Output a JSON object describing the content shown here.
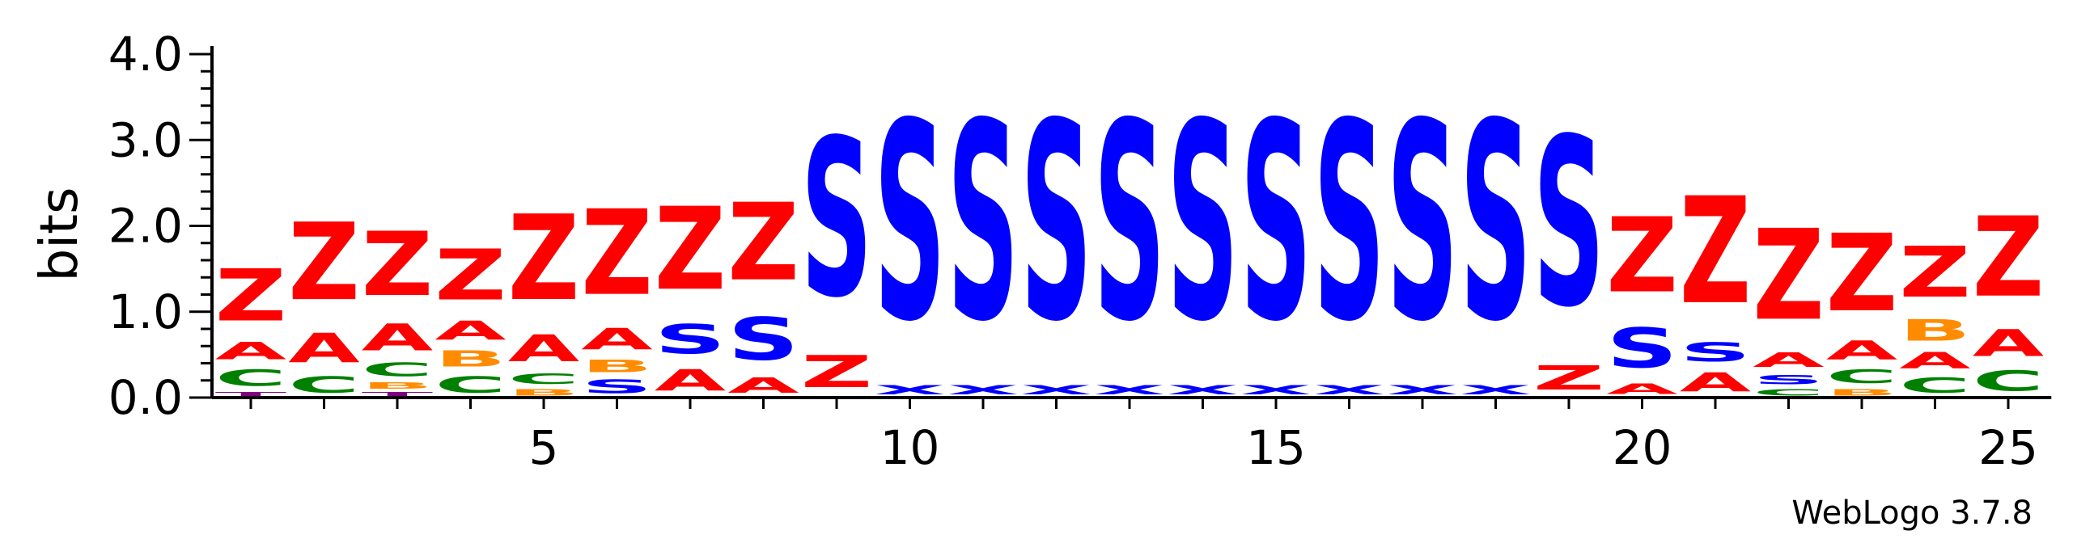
{
  "chart_data": {
    "type": "sequence-logo",
    "ylabel": "bits",
    "xlabel": "",
    "ylim": [
      0,
      4.0
    ],
    "y_ticks": [
      "0.0",
      "1.0",
      "2.0",
      "3.0",
      "4.0"
    ],
    "x_ticks": [
      {
        "position": 5,
        "label": "5"
      },
      {
        "position": 10,
        "label": "10"
      },
      {
        "position": 15,
        "label": "15"
      },
      {
        "position": 20,
        "label": "20"
      },
      {
        "position": 25,
        "label": "25"
      }
    ],
    "num_positions": 25,
    "colors": {
      "Z": "#ff0000",
      "A": "#ff0000",
      "S": "#0000ff",
      "X": "#0000ff",
      "C": "#008000",
      "B": "#ff8c00",
      "T": "#800080"
    },
    "positions": [
      {
        "pos": 1,
        "stack": [
          {
            "letter": "T",
            "height": 0.08
          },
          {
            "letter": "C",
            "height": 0.3
          },
          {
            "letter": "A",
            "height": 0.32
          },
          {
            "letter": "Z",
            "height": 0.97
          }
        ]
      },
      {
        "pos": 2,
        "stack": [
          {
            "letter": "C",
            "height": 0.3
          },
          {
            "letter": "A",
            "height": 0.55
          },
          {
            "letter": "Z",
            "height": 1.45
          }
        ]
      },
      {
        "pos": 3,
        "stack": [
          {
            "letter": "T",
            "height": 0.08
          },
          {
            "letter": "B",
            "height": 0.12
          },
          {
            "letter": "C",
            "height": 0.25
          },
          {
            "letter": "A",
            "height": 0.5
          },
          {
            "letter": "Z",
            "height": 1.2
          }
        ]
      },
      {
        "pos": 4,
        "stack": [
          {
            "letter": "C",
            "height": 0.3
          },
          {
            "letter": "B",
            "height": 0.3
          },
          {
            "letter": "A",
            "height": 0.35
          },
          {
            "letter": "Z",
            "height": 0.95
          }
        ]
      },
      {
        "pos": 5,
        "stack": [
          {
            "letter": "B",
            "height": 0.12
          },
          {
            "letter": "C",
            "height": 0.2
          },
          {
            "letter": "A",
            "height": 0.5
          },
          {
            "letter": "Z",
            "height": 1.6
          }
        ]
      },
      {
        "pos": 6,
        "stack": [
          {
            "letter": "S",
            "height": 0.25
          },
          {
            "letter": "B",
            "height": 0.23
          },
          {
            "letter": "A",
            "height": 0.4
          },
          {
            "letter": "Z",
            "height": 1.6
          }
        ]
      },
      {
        "pos": 7,
        "stack": [
          {
            "letter": "A",
            "height": 0.4
          },
          {
            "letter": "S",
            "height": 0.55
          },
          {
            "letter": "Z",
            "height": 1.55
          }
        ]
      },
      {
        "pos": 8,
        "stack": [
          {
            "letter": "A",
            "height": 0.28
          },
          {
            "letter": "S",
            "height": 0.8
          },
          {
            "letter": "Z",
            "height": 1.45
          }
        ]
      },
      {
        "pos": 9,
        "stack": [
          {
            "letter": "Z",
            "height": 0.6
          },
          {
            "letter": "S",
            "height": 2.95
          }
        ]
      },
      {
        "pos": 10,
        "stack": [
          {
            "letter": "X",
            "height": 0.18
          },
          {
            "letter": "S",
            "height": 3.7
          }
        ]
      },
      {
        "pos": 11,
        "stack": [
          {
            "letter": "X",
            "height": 0.18
          },
          {
            "letter": "S",
            "height": 3.7
          }
        ]
      },
      {
        "pos": 12,
        "stack": [
          {
            "letter": "X",
            "height": 0.18
          },
          {
            "letter": "S",
            "height": 3.7
          }
        ]
      },
      {
        "pos": 13,
        "stack": [
          {
            "letter": "X",
            "height": 0.18
          },
          {
            "letter": "S",
            "height": 3.7
          }
        ]
      },
      {
        "pos": 14,
        "stack": [
          {
            "letter": "X",
            "height": 0.18
          },
          {
            "letter": "S",
            "height": 3.7
          }
        ]
      },
      {
        "pos": 15,
        "stack": [
          {
            "letter": "X",
            "height": 0.18
          },
          {
            "letter": "S",
            "height": 3.7
          }
        ]
      },
      {
        "pos": 16,
        "stack": [
          {
            "letter": "X",
            "height": 0.18
          },
          {
            "letter": "S",
            "height": 3.7
          }
        ]
      },
      {
        "pos": 17,
        "stack": [
          {
            "letter": "X",
            "height": 0.18
          },
          {
            "letter": "S",
            "height": 3.7
          }
        ]
      },
      {
        "pos": 18,
        "stack": [
          {
            "letter": "X",
            "height": 0.18
          },
          {
            "letter": "S",
            "height": 3.7
          }
        ]
      },
      {
        "pos": 19,
        "stack": [
          {
            "letter": "Z",
            "height": 0.45
          },
          {
            "letter": "S",
            "height": 3.15
          }
        ]
      },
      {
        "pos": 20,
        "stack": [
          {
            "letter": "A",
            "height": 0.2
          },
          {
            "letter": "S",
            "height": 0.75
          },
          {
            "letter": "Z",
            "height": 1.4
          }
        ]
      },
      {
        "pos": 21,
        "stack": [
          {
            "letter": "A",
            "height": 0.35
          },
          {
            "letter": "S",
            "height": 0.35
          },
          {
            "letter": "Z",
            "height": 2.0
          }
        ]
      },
      {
        "pos": 22,
        "stack": [
          {
            "letter": "C",
            "height": 0.12
          },
          {
            "letter": "S",
            "height": 0.18
          },
          {
            "letter": "A",
            "height": 0.27
          },
          {
            "letter": "Z",
            "height": 1.7
          }
        ]
      },
      {
        "pos": 23,
        "stack": [
          {
            "letter": "B",
            "height": 0.12
          },
          {
            "letter": "C",
            "height": 0.25
          },
          {
            "letter": "A",
            "height": 0.35
          },
          {
            "letter": "Z",
            "height": 1.45
          }
        ]
      },
      {
        "pos": 24,
        "stack": [
          {
            "letter": "C",
            "height": 0.28
          },
          {
            "letter": "A",
            "height": 0.3
          },
          {
            "letter": "B",
            "height": 0.4
          },
          {
            "letter": "Z",
            "height": 0.95
          }
        ]
      },
      {
        "pos": 25,
        "stack": [
          {
            "letter": "C",
            "height": 0.38
          },
          {
            "letter": "A",
            "height": 0.5
          },
          {
            "letter": "Z",
            "height": 1.5
          }
        ]
      }
    ]
  },
  "footer": {
    "credit": "WebLogo 3.7.8"
  }
}
